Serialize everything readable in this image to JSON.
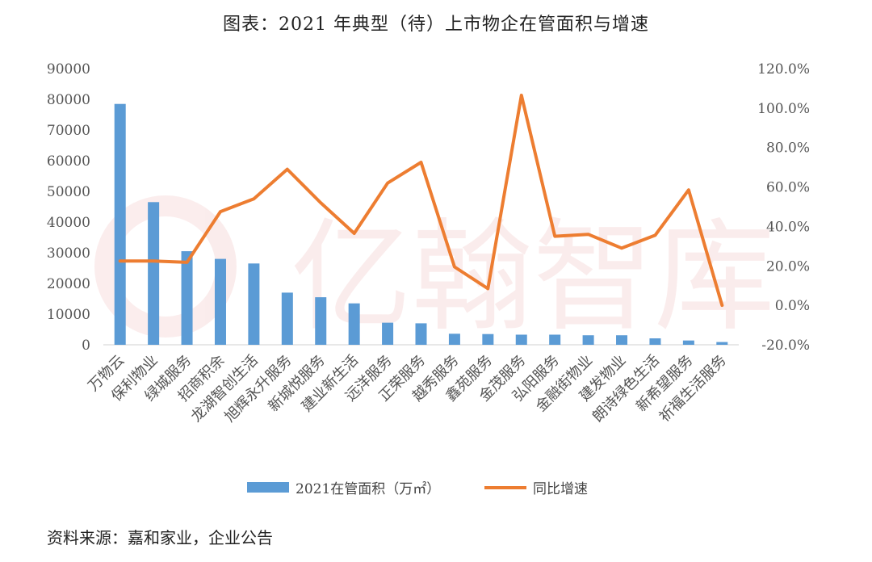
{
  "chart_data": {
    "type": "bar",
    "title": "图表：2021 年典型（待）上市物企在管面积与增速",
    "categories": [
      "万物云",
      "保利物业",
      "绿城服务",
      "招商积余",
      "龙湖智创生活",
      "旭辉永升服务",
      "新城悦服务",
      "建业新生活",
      "远洋服务",
      "正荣服务",
      "越秀服务",
      "鑫苑服务",
      "金茂服务",
      "弘阳服务",
      "金融街物业",
      "建发物业",
      "朗诗绿色生活",
      "新希望服务",
      "祈福生活服务"
    ],
    "series": [
      {
        "name": "2021在管面积（万㎡）",
        "type": "bar",
        "axis": "left",
        "color": "#5B9BD5",
        "values": [
          78500,
          46500,
          30500,
          28000,
          26500,
          17000,
          15500,
          13500,
          7200,
          7000,
          3600,
          3500,
          3300,
          3300,
          3100,
          3100,
          2100,
          1400,
          900
        ]
      },
      {
        "name": "同比增速",
        "type": "line",
        "axis": "right",
        "color": "#ED7D31",
        "values": [
          22.5,
          22.5,
          21.8,
          47.5,
          54.0,
          69.0,
          52.0,
          36.5,
          62.0,
          72.5,
          19.5,
          8.5,
          106.5,
          35.0,
          36.0,
          29.0,
          35.5,
          58.5,
          0.0
        ]
      }
    ],
    "y_left": {
      "min": 0,
      "max": 90000,
      "ticks": [
        "0",
        "10000",
        "20000",
        "30000",
        "40000",
        "50000",
        "60000",
        "70000",
        "80000",
        "90000"
      ]
    },
    "y_right": {
      "min": -20,
      "max": 120,
      "ticks": [
        "-20.0%",
        "0.0%",
        "20.0%",
        "40.0%",
        "60.0%",
        "80.0%",
        "100.0%",
        "120.0%"
      ]
    },
    "grid": false,
    "legend": "bottom",
    "source": "资料来源：嘉和家业，企业公告",
    "watermark": "亿翰智库"
  }
}
